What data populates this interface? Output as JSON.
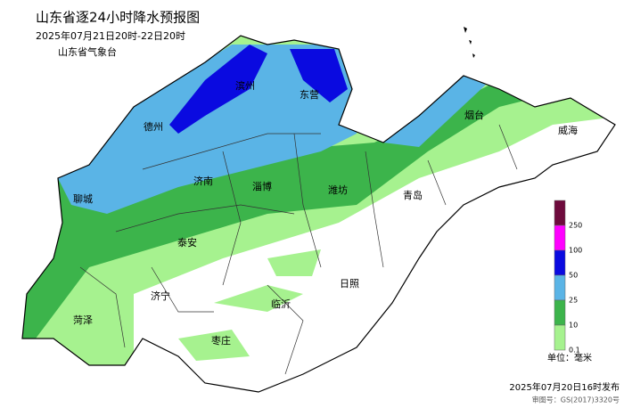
{
  "header": {
    "title": "山东省逐24小时降水预报图",
    "subtitle": "2025年07月21日20时-22日20时",
    "issuer": "山东省气象台"
  },
  "cities": [
    "滨州",
    "东营",
    "德州",
    "烟台",
    "威海",
    "济南",
    "淄博",
    "潍坊",
    "青岛",
    "聊城",
    "泰安",
    "日照",
    "济宁",
    "菏泽",
    "临沂",
    "枣庄"
  ],
  "legend": {
    "levels": [
      {
        "label": "250",
        "color": "#6e0a3c"
      },
      {
        "label": "100",
        "color": "#ff00ff"
      },
      {
        "label": "50",
        "color": "#0a0ae0"
      },
      {
        "label": "25",
        "color": "#5ab4e6"
      },
      {
        "label": "10",
        "color": "#3cb44b"
      },
      {
        "label": "0.1",
        "color": "#a6f28f"
      }
    ],
    "unit": "单位：毫米"
  },
  "footer": {
    "issued": "2025年07月20日16时发布",
    "approval": "审图号：GS(2017)3320号"
  }
}
